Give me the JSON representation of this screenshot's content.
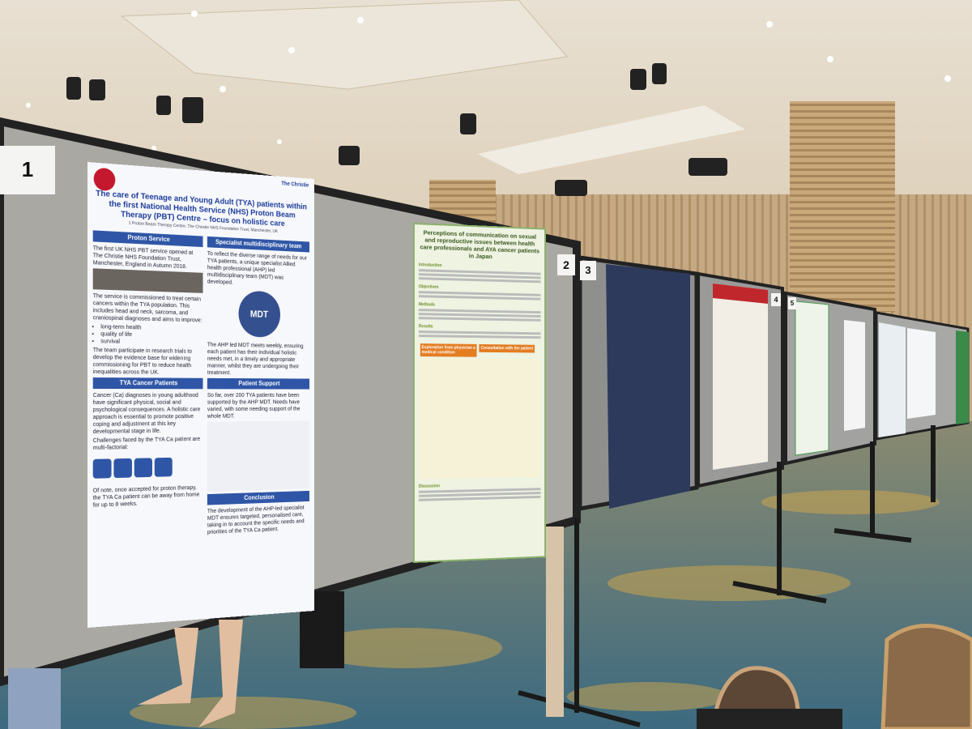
{
  "board_numbers": [
    "1",
    "2",
    "3",
    "4",
    "5"
  ],
  "posters": [
    {
      "org": "The Christie",
      "title": "The care of Teenage and Young Adult (TYA) patients within the first National Health Service (NHS) Proton Beam Therapy (PBT) Centre – focus on holistic care",
      "affiliation": "1 Proton Beam Therapy Centre, The Christie NHS Foundation Trust, Manchester, UK",
      "sections": [
        {
          "heading": "Proton Service",
          "paragraphs": [
            "The first UK NHS PBT service opened at The Christie NHS Foundation Trust, Manchester, England in Autumn 2018.",
            "The service is commissioned to treat certain cancers within the TYA population. This includes head and neck, sarcoma, and craniospinal diagnoses and aims to improve:"
          ],
          "bullets": [
            "long-term health",
            "quality of life",
            "survival"
          ],
          "closing": "The team participate in research trials to develop the evidence base for widening commissioning for PBT to reduce health inequalities across the UK."
        },
        {
          "heading": "TYA Cancer Patients",
          "paragraphs": [
            "Cancer (Ca) diagnoses in young adulthood have significant physical, social and psychological consequences. A holistic care approach is essential to promote positive coping and adjustment at this key developmental stage in life.",
            "Challenges faced by the TYA Ca patient are multi-factorial:",
            "Of note, once accepted for proton therapy, the TYA Ca patient can be away from home for up to 8 weeks."
          ]
        },
        {
          "heading": "Specialist multidisciplinary team",
          "paragraphs": [
            "To reflect the diverse range of needs for our TYA patients, a unique specialist Allied health professional (AHP) led multidisciplinary team (MDT) was developed.",
            "MDT",
            "The AHP led MDT meets weekly, ensuring each patient has their individual holistic needs met, in a timely and appropriate manner, whilst they are undergoing their treatment."
          ]
        },
        {
          "heading": "Patient Support",
          "paragraphs": [
            "So far, over 200 TYA patients have been supported by the AHP MDT. Needs have varied, with some needing support of the whole MDT."
          ]
        },
        {
          "heading": "Conclusion",
          "paragraphs": [
            "The development of the AHP-led specialist MDT ensures targeted, personalised care, taking in to account the specific needs and priorities of the TYA Ca patient."
          ]
        }
      ]
    },
    {
      "title": "Perceptions of communication on sexual and reproductive issues between health care professionals and AYA cancer patients in Japan",
      "headings": [
        "Introduction",
        "Objectives",
        "Methods",
        "Results",
        "Discussion"
      ],
      "boxes": [
        "Exploration from physician a medical condition",
        "Consultation with the patient"
      ]
    }
  ]
}
